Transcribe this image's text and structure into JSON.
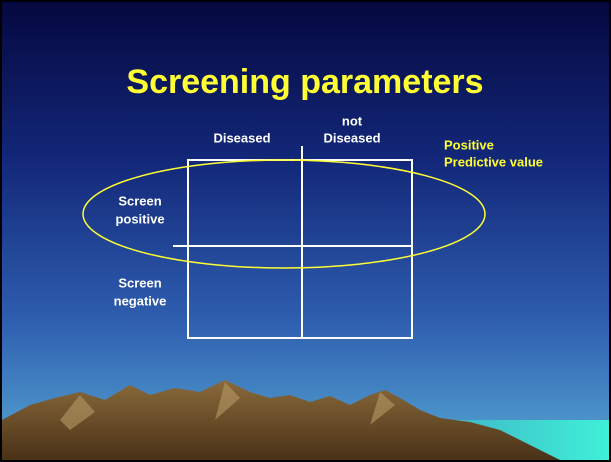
{
  "slide": {
    "title": "Screening parameters",
    "columns": [
      [
        "Diseased"
      ],
      [
        "not",
        "Diseased"
      ]
    ],
    "rows": [
      [
        "Screen",
        "positive"
      ],
      [
        "Screen",
        "negative"
      ]
    ],
    "annotation": [
      "Positive",
      "Predictive value"
    ]
  }
}
